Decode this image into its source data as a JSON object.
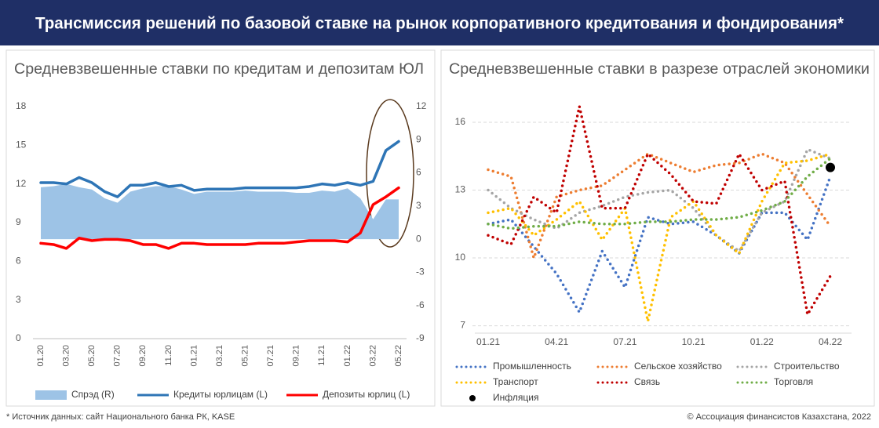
{
  "header": {
    "title": "Трансмиссия решений по базовой ставке на рынок корпоративного кредитования и фондирования*"
  },
  "footer": {
    "source": "* Источник данных: сайт Национального банка РК, KASE",
    "copyright": "© Ассоциация финансистов Казахстана, 2022"
  },
  "chart_data": [
    {
      "type": "line",
      "title": "Средневзвешенные ставки по кредитам и депозитам ЮЛ",
      "categories": [
        "01.20",
        null,
        "03.20",
        null,
        "05.20",
        null,
        "07.20",
        null,
        "09.20",
        null,
        "11.20",
        null,
        "01.21",
        null,
        "03.21",
        null,
        "05.21",
        null,
        "07.21",
        null,
        "09.21",
        null,
        "11.21",
        null,
        "01.22",
        null,
        "03.22",
        null,
        "05.22"
      ],
      "ylim": [
        0,
        18
      ],
      "yticks": [
        0,
        3,
        6,
        9,
        12,
        15,
        18
      ],
      "y2lim": [
        -9,
        12
      ],
      "y2ticks": [
        -9,
        -6,
        -3,
        0,
        3,
        6,
        9,
        12
      ],
      "grid": false,
      "series": [
        {
          "name": "Спрэд (R)",
          "style": "area",
          "axis": "y2",
          "color": "#9dc3e6",
          "values": [
            4.7,
            4.8,
            5.0,
            4.7,
            4.5,
            3.7,
            3.3,
            4.3,
            4.6,
            4.8,
            4.8,
            4.5,
            4.1,
            4.3,
            4.3,
            4.3,
            4.4,
            4.3,
            4.3,
            4.3,
            4.2,
            4.2,
            4.4,
            4.3,
            4.6,
            3.7,
            1.8,
            3.6,
            3.6
          ]
        },
        {
          "name": "Кредиты юрлицам (L)",
          "style": "solid",
          "color": "#2e75b6",
          "values": [
            12.1,
            12.1,
            12.0,
            12.5,
            12.1,
            11.4,
            11.0,
            11.9,
            11.9,
            12.1,
            11.8,
            11.9,
            11.5,
            11.6,
            11.6,
            11.6,
            11.7,
            11.7,
            11.7,
            11.7,
            11.7,
            11.8,
            12.0,
            11.9,
            12.1,
            11.9,
            12.2,
            14.6,
            15.3
          ]
        },
        {
          "name": "Депозиты юрлиц (L)",
          "style": "solid",
          "color": "#ff0000",
          "values": [
            7.4,
            7.3,
            7.0,
            7.8,
            7.6,
            7.7,
            7.7,
            7.6,
            7.3,
            7.3,
            7.0,
            7.4,
            7.4,
            7.3,
            7.3,
            7.3,
            7.3,
            7.4,
            7.4,
            7.4,
            7.5,
            7.6,
            7.6,
            7.6,
            7.5,
            8.2,
            10.4,
            11.0,
            11.7
          ]
        }
      ]
    },
    {
      "type": "line",
      "title": "Средневзвешенные ставки в разрезе отраслей экономики",
      "categories": [
        "01.21",
        null,
        null,
        "04.21",
        null,
        null,
        "07.21",
        null,
        null,
        "10.21",
        null,
        null,
        "01.22",
        null,
        null,
        "04.22"
      ],
      "ylim": [
        6.5,
        16.9
      ],
      "yticks": [
        7,
        10,
        13,
        16
      ],
      "grid": true,
      "series": [
        {
          "name": "Промышленность",
          "style": "dotted",
          "color": "#4472c4",
          "values": [
            11.5,
            11.7,
            10.5,
            9.3,
            7.6,
            10.3,
            8.7,
            11.8,
            11.5,
            11.6,
            11.0,
            10.2,
            12.0,
            12.0,
            10.8,
            13.6
          ]
        },
        {
          "name": "Сельское хозяйство",
          "style": "dotted",
          "color": "#ed7d31",
          "values": [
            13.9,
            13.6,
            10.0,
            12.7,
            13.0,
            13.2,
            13.9,
            14.6,
            14.2,
            13.8,
            14.1,
            14.2,
            14.6,
            14.2,
            12.8,
            11.4
          ]
        },
        {
          "name": "Строительство",
          "style": "dotted",
          "color": "#a5a5a5",
          "values": [
            13.0,
            12.2,
            11.7,
            11.3,
            12.0,
            12.3,
            12.7,
            12.9,
            13.0,
            12.2,
            11.0,
            10.3,
            12.0,
            12.5,
            14.8,
            14.4
          ]
        },
        {
          "name": "Транспорт",
          "style": "dotted",
          "color": "#ffc000",
          "values": [
            12.0,
            12.2,
            11.0,
            11.7,
            12.5,
            10.8,
            12.2,
            7.2,
            11.8,
            12.5,
            11.0,
            10.2,
            12.5,
            14.2,
            14.3,
            14.6
          ]
        },
        {
          "name": "Связь",
          "style": "dotted",
          "color": "#c00000",
          "values": [
            11.0,
            10.6,
            12.7,
            12.0,
            16.7,
            12.2,
            12.2,
            14.6,
            13.7,
            12.5,
            12.4,
            14.6,
            13.0,
            13.4,
            7.5,
            9.2
          ]
        },
        {
          "name": "Торговля",
          "style": "dotted",
          "color": "#70ad47",
          "values": [
            11.5,
            11.3,
            11.4,
            11.4,
            11.6,
            11.5,
            11.5,
            11.6,
            11.6,
            11.7,
            11.7,
            11.8,
            12.1,
            12.5,
            13.6,
            14.4
          ]
        },
        {
          "name": "Инфляция",
          "style": "marker",
          "color": "#000000",
          "values": [
            null,
            null,
            null,
            null,
            null,
            null,
            null,
            null,
            null,
            null,
            null,
            null,
            null,
            null,
            null,
            14.0
          ]
        }
      ]
    }
  ]
}
